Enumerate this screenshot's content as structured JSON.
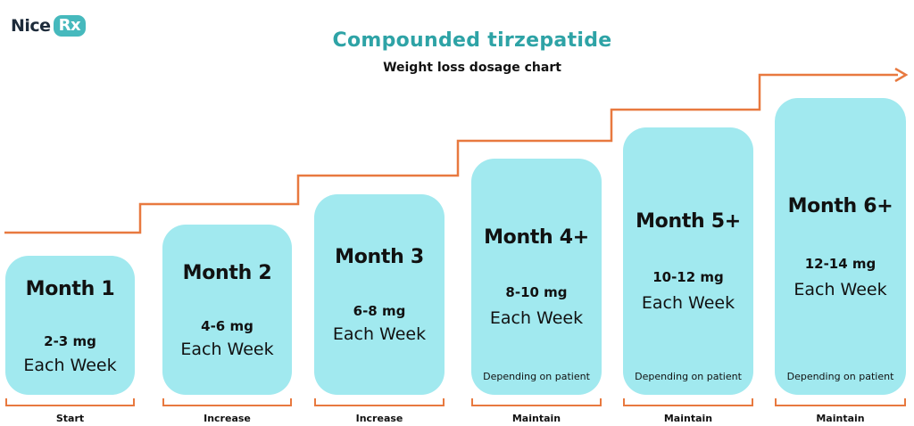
{
  "brand": {
    "name": "Nice",
    "badge": "Rx"
  },
  "title": "Compounded tirzepatide",
  "subtitle": "Weight loss dosage chart",
  "colors": {
    "accent": "#2ea3a6",
    "card": "#a1e9ef",
    "arrow": "#e8793f"
  },
  "steps": [
    {
      "month": "Month 1",
      "dose": "2-3 mg",
      "frequency": "Each Week",
      "note": "",
      "stage": "Start"
    },
    {
      "month": "Month 2",
      "dose": "4-6 mg",
      "frequency": "Each Week",
      "note": "",
      "stage": "Increase"
    },
    {
      "month": "Month 3",
      "dose": "6-8 mg",
      "frequency": "Each Week",
      "note": "",
      "stage": "Increase"
    },
    {
      "month": "Month 4+",
      "dose": "8-10 mg",
      "frequency": "Each Week",
      "note": "Depending on patient",
      "stage": "Maintain"
    },
    {
      "month": "Month 5+",
      "dose": "10-12 mg",
      "frequency": "Each Week",
      "note": "Depending on patient",
      "stage": "Maintain"
    },
    {
      "month": "Month 6+",
      "dose": "12-14 mg",
      "frequency": "Each Week",
      "note": "Depending on patient",
      "stage": "Maintain"
    }
  ]
}
